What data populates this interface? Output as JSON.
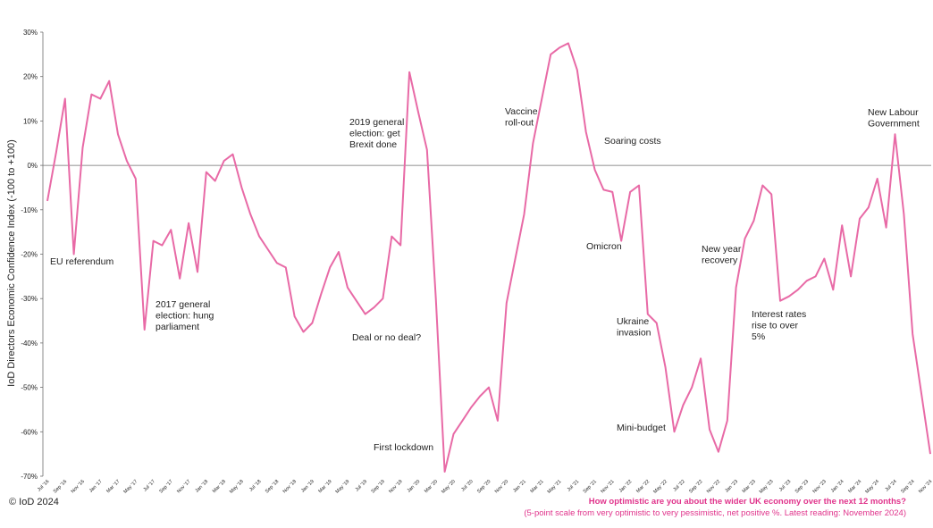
{
  "copyright": "© IoD 2024",
  "footer": {
    "question": "How optimistic are you about the wider UK economy over the next 12 months?",
    "note": "(5-point scale from very optimistic to very pessimistic, net positive %. Latest reading: November 2024)"
  },
  "colors": {
    "line": "#e86aa6",
    "axis": "#6e6e6e",
    "footer": "#e0338b"
  },
  "chart_data": {
    "type": "line",
    "title": "",
    "xlabel": "",
    "ylabel": "IoD Directors Economic Confidence Index (-100 to +100)",
    "ylim": [
      -70,
      30
    ],
    "yticks": [
      30,
      20,
      10,
      0,
      -10,
      -20,
      -30,
      -40,
      -50,
      -60,
      -70
    ],
    "ytick_labels": [
      "30%",
      "20%",
      "10%",
      "0%",
      "-10%",
      "-20%",
      "-30%",
      "-40%",
      "-50%",
      "-60%",
      "-70%"
    ],
    "x_tick_labels": [
      "Jul '16",
      "Sep '16",
      "Nov '16",
      "Jan '17",
      "Mar '17",
      "May '17",
      "Jul '17",
      "Sep '17",
      "Nov '17",
      "Jan '18",
      "Mar '18",
      "May '18",
      "Jul '18",
      "Sep '18",
      "Nov '18",
      "Jan '19",
      "Mar '19",
      "May '19",
      "Jul '19",
      "Sep '19",
      "Nov '19",
      "Jan '20",
      "Mar '20",
      "May '20",
      "Jul '20",
      "Sep '20",
      "Nov '20",
      "Jan '21",
      "Mar '21",
      "May '21",
      "Jul '21",
      "Sep '21",
      "Nov '21",
      "Jan '22",
      "Mar '22",
      "May '22",
      "Jul '22",
      "Sep '22",
      "Nov '22",
      "Jan '23",
      "Mar '23",
      "May '23",
      "Jul '23",
      "Sep '23",
      "Nov '23",
      "Jan '24",
      "Mar '24",
      "May '24",
      "Jul '24",
      "Sep '24",
      "Nov '24"
    ],
    "grid": false,
    "legend": "none",
    "series": [
      {
        "values": [
          -8,
          3,
          15,
          -20,
          4,
          16,
          15,
          19,
          7,
          1,
          -3,
          -37,
          -17,
          -18,
          -14.5,
          -25.5,
          -13,
          -24,
          -1.5,
          -3.5,
          1,
          2.5,
          -5,
          -11,
          -16,
          -19,
          -22,
          -23,
          -34,
          -37.5,
          -35.5,
          -29,
          -23,
          -19.5,
          -27.5,
          -30.5,
          -33.5,
          -32,
          -30,
          -16,
          -18,
          21,
          12,
          3.5,
          -30,
          -69,
          -60.5,
          -57.5,
          -54.5,
          -52,
          -50,
          -57.5,
          -31,
          -21,
          -11,
          5,
          15,
          25,
          26.5,
          27.5,
          21.5,
          7.5,
          -1,
          -5.5,
          -6,
          -17,
          -6,
          -4.5,
          -33.5,
          -35.5,
          -45.5,
          -60,
          -54,
          -50,
          -43.5,
          -59.5,
          -64.5,
          -57.5,
          -27.5,
          -16.5,
          -12.5,
          -4.5,
          -6.5,
          -30.5,
          -29.5,
          -28,
          -26,
          -25,
          -21,
          -28,
          -13.5,
          -25,
          -12,
          -9.5,
          -3,
          -14,
          7,
          -11,
          -38,
          -51.5,
          -65
        ]
      }
    ],
    "annotations": [
      {
        "lines": [
          "EU referendum"
        ]
      },
      {
        "lines": [
          "2017 general",
          "election: hung",
          "parliament"
        ]
      },
      {
        "lines": [
          "2019 general",
          "election: get",
          "Brexit done"
        ]
      },
      {
        "lines": [
          "Deal or no deal?"
        ]
      },
      {
        "lines": [
          "First lockdown"
        ]
      },
      {
        "lines": [
          "Vaccine",
          "roll-out"
        ]
      },
      {
        "lines": [
          "Soaring costs"
        ]
      },
      {
        "lines": [
          "Omicron"
        ]
      },
      {
        "lines": [
          "Ukraine",
          "invasion"
        ]
      },
      {
        "lines": [
          "Mini-budget"
        ]
      },
      {
        "lines": [
          "New year",
          "recovery"
        ]
      },
      {
        "lines": [
          "Interest rates",
          "rise to over",
          "5%"
        ]
      },
      {
        "lines": [
          "New Labour",
          "Government"
        ]
      }
    ]
  }
}
